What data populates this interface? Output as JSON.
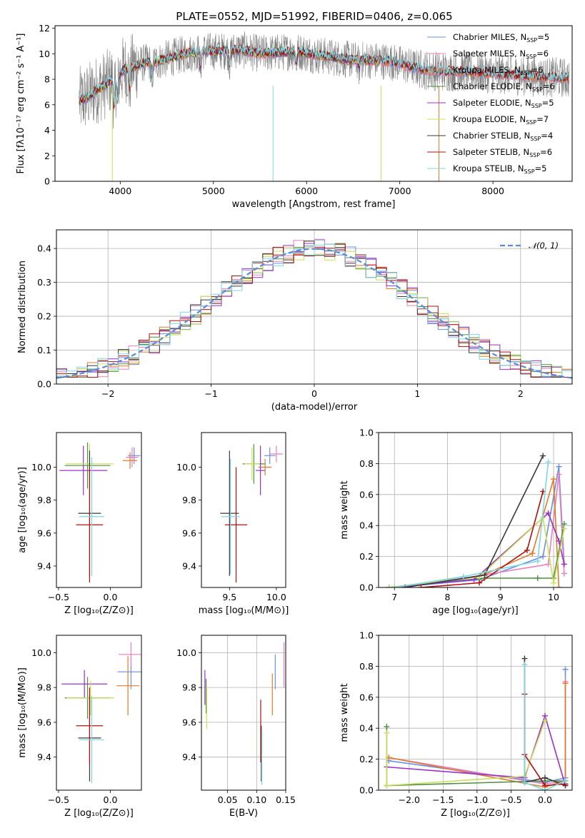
{
  "figure": {
    "title": "PLATE=0552, MJD=51992, FIBERID=0406, z=0.065"
  },
  "colors": {
    "Chabrier MILES": "#6b8fe3",
    "Salpeter MILES": "#e87fbf",
    "Kroupa MILES": "#e07b2a",
    "Chabrier ELODIE": "#4d8f3f",
    "Salpeter ELODIE": "#9b30c8",
    "Kroupa ELODIE": "#c8e05a",
    "Chabrier STELIB": "#3a3a3a",
    "Salpeter STELIB": "#b01010",
    "Kroupa STELIB": "#7fd6e0",
    "data": "#808080",
    "normal": "#5b8ad6"
  },
  "chart_data": [
    {
      "id": "spectrum",
      "type": "line",
      "xlabel": "wavelength [Angstrom, rest frame]",
      "ylabel": "Flux [fλ10⁻¹⁷ erg cm⁻² s⁻¹ A⁻¹]",
      "xlim": [
        3300,
        8850
      ],
      "ylim": [
        0,
        12.2
      ],
      "xticks": [
        4000,
        5000,
        6000,
        7000,
        8000
      ],
      "yticks": [
        0,
        2,
        4,
        6,
        8,
        10,
        12
      ],
      "legend_position": "top-right",
      "legend": [
        {
          "name": "Chabrier MILES",
          "nssp": "5"
        },
        {
          "name": "Salpeter MILES",
          "nssp": "6"
        },
        {
          "name": "Kroupa MILES",
          "nssp": "6"
        },
        {
          "name": "Chabrier ELODIE",
          "nssp": "6"
        },
        {
          "name": "Salpeter ELODIE",
          "nssp": "5"
        },
        {
          "name": "Kroupa ELODIE",
          "nssp": "7"
        },
        {
          "name": "Chabrier STELIB",
          "nssp": "4"
        },
        {
          "name": "Salpeter STELIB",
          "nssp": "6"
        },
        {
          "name": "Kroupa STELIB",
          "nssp": "5"
        }
      ],
      "continuum": {
        "x": [
          3560,
          3650,
          3750,
          3850,
          3950,
          4050,
          4150,
          4250,
          4350,
          4500,
          4700,
          4900,
          5100,
          5300,
          5500,
          5700,
          5900,
          6100,
          6300,
          6500,
          6700,
          6900,
          7100,
          7300,
          7500,
          7700,
          7900,
          8100,
          8300,
          8500,
          8800
        ],
        "y": [
          6.3,
          6.6,
          7.2,
          7.6,
          8.2,
          8.8,
          9.0,
          9.3,
          9.3,
          9.6,
          10.0,
          10.2,
          10.2,
          10.3,
          10.0,
          10.1,
          10.2,
          9.9,
          9.7,
          9.5,
          9.5,
          9.4,
          9.0,
          8.7,
          8.6,
          8.6,
          8.5,
          8.4,
          8.3,
          8.2,
          8.1
        ]
      }
    },
    {
      "id": "residuals",
      "type": "bar",
      "xlabel": "(data-model)/error",
      "ylabel": "Normed distribution",
      "xlim": [
        -2.5,
        2.5
      ],
      "ylim": [
        0,
        0.455
      ],
      "xticks": [
        -2,
        -1,
        0,
        1,
        2
      ],
      "yticks": [
        0.0,
        0.1,
        0.2,
        0.3,
        0.4
      ],
      "grid": true,
      "bin_width": 0.1,
      "legend": "𝒩(0, 1)",
      "gaussian": {
        "mean": 0,
        "sd": 1,
        "scale": 0.399
      }
    },
    {
      "id": "age-vs-Z",
      "type": "scatter",
      "xlabel": "Z [log₁₀(Z/Z⊙)]",
      "ylabel": "age  [log₁₀(age/yr)]",
      "xlim": [
        -0.52,
        0.3
      ],
      "ylim": [
        9.27,
        10.21
      ],
      "xticks": [
        -0.5,
        0.0
      ],
      "yticks": [
        9.4,
        9.6,
        9.8,
        10.0
      ],
      "points": [
        {
          "s": "Chabrier MILES",
          "x": 0.23,
          "y": 10.07,
          "xe": 0.06,
          "ye": 0.05
        },
        {
          "s": "Salpeter MILES",
          "x": 0.21,
          "y": 10.06,
          "xe": 0.06,
          "ye": 0.06
        },
        {
          "s": "Kroupa MILES",
          "x": 0.19,
          "y": 10.04,
          "xe": 0.07,
          "ye": 0.05
        },
        {
          "s": "Chabrier ELODIE",
          "x": -0.22,
          "y": 10.01,
          "xe": 0.22,
          "ye": 0.14
        },
        {
          "s": "Salpeter ELODIE",
          "x": -0.26,
          "y": 9.98,
          "xe": 0.23,
          "ye": 0.15
        },
        {
          "s": "Kroupa ELODIE",
          "x": -0.2,
          "y": 10.02,
          "xe": 0.23,
          "ye": 0.12
        },
        {
          "s": "Chabrier STELIB",
          "x": -0.2,
          "y": 9.72,
          "xe": 0.11,
          "ye": 0.38
        },
        {
          "s": "Salpeter STELIB",
          "x": -0.2,
          "y": 9.65,
          "xe": 0.13,
          "ye": 0.35
        },
        {
          "s": "Kroupa STELIB",
          "x": -0.18,
          "y": 9.7,
          "xe": 0.12,
          "ye": 0.36
        }
      ]
    },
    {
      "id": "age-vs-mass",
      "type": "scatter",
      "xlabel": "mass [log₁₀(M/M⊙)]",
      "ylabel": "",
      "xlim": [
        9.2,
        10.1
      ],
      "ylim": [
        9.27,
        10.21
      ],
      "xticks": [
        9.5,
        10.0
      ],
      "yticks": [
        9.4,
        9.6,
        9.8,
        10.0
      ],
      "points": [
        {
          "s": "Chabrier MILES",
          "x": 9.93,
          "y": 10.07,
          "xe": 0.06,
          "ye": 0.05
        },
        {
          "s": "Salpeter MILES",
          "x": 10.0,
          "y": 10.08,
          "xe": 0.07,
          "ye": 0.05
        },
        {
          "s": "Kroupa MILES",
          "x": 9.88,
          "y": 10.0,
          "xe": 0.07,
          "ye": 0.05
        },
        {
          "s": "Chabrier ELODIE",
          "x": 9.76,
          "y": 10.02,
          "xe": 0.12,
          "ye": 0.12
        },
        {
          "s": "Salpeter ELODIE",
          "x": 9.83,
          "y": 9.98,
          "xe": 0.05,
          "ye": 0.15
        },
        {
          "s": "Kroupa ELODIE",
          "x": 9.74,
          "y": 10.02,
          "xe": 0.08,
          "ye": 0.1
        },
        {
          "s": "Chabrier STELIB",
          "x": 9.5,
          "y": 9.72,
          "xe": 0.1,
          "ye": 0.38
        },
        {
          "s": "Salpeter STELIB",
          "x": 9.57,
          "y": 9.65,
          "xe": 0.12,
          "ye": 0.35
        },
        {
          "s": "Kroupa STELIB",
          "x": 9.51,
          "y": 9.7,
          "xe": 0.1,
          "ye": 0.35
        }
      ]
    },
    {
      "id": "weight-vs-age",
      "type": "line",
      "xlabel": "age  [log₁₀(age/yr)]",
      "ylabel": "mass weight",
      "xlim": [
        6.7,
        10.35
      ],
      "ylim": [
        0,
        1.0
      ],
      "xticks": [
        7,
        8,
        9,
        10
      ],
      "yticks": [
        0.0,
        0.2,
        0.4,
        0.6,
        0.8,
        1.0
      ],
      "grid": true,
      "series": [
        {
          "s": "Chabrier MILES",
          "x": [
            7.0,
            8.6,
            9.8,
            10.1,
            10.2
          ],
          "y": [
            0.0,
            0.05,
            0.2,
            0.78,
            0.15
          ]
        },
        {
          "s": "Salpeter MILES",
          "x": [
            6.9,
            8.3,
            9.9,
            10.1,
            10.2
          ],
          "y": [
            0.0,
            0.06,
            0.15,
            0.73,
            0.09
          ]
        },
        {
          "s": "Kroupa MILES",
          "x": [
            7.0,
            8.6,
            9.6,
            10.0,
            10.1
          ],
          "y": [
            0.0,
            0.07,
            0.22,
            0.7,
            0.0
          ]
        },
        {
          "s": "Chabrier ELODIE",
          "x": [
            6.9,
            8.7,
            9.7,
            10.0,
            10.2
          ],
          "y": [
            0.0,
            0.06,
            0.06,
            0.06,
            0.41
          ]
        },
        {
          "s": "Salpeter ELODIE",
          "x": [
            6.9,
            8.5,
            9.9,
            10.1,
            10.2
          ],
          "y": [
            0.0,
            0.05,
            0.48,
            0.3,
            0.15
          ]
        },
        {
          "s": "Kroupa ELODIE",
          "x": [
            6.9,
            8.6,
            9.8,
            10.0,
            10.2
          ],
          "y": [
            0.0,
            0.07,
            0.45,
            0.03,
            0.38
          ]
        },
        {
          "s": "Chabrier STELIB",
          "x": [
            7.2,
            8.7,
            9.8
          ],
          "y": [
            0.0,
            0.08,
            0.85
          ]
        },
        {
          "s": "Salpeter STELIB",
          "x": [
            7.5,
            8.6,
            9.5,
            9.8
          ],
          "y": [
            0.0,
            0.03,
            0.24,
            0.62
          ]
        },
        {
          "s": "Kroupa STELIB",
          "x": [
            7.0,
            8.3,
            9.7,
            9.9
          ],
          "y": [
            0.0,
            0.07,
            0.17,
            0.81
          ]
        }
      ]
    },
    {
      "id": "mass-vs-Z",
      "type": "scatter",
      "xlabel": "Z [log₁₀(Z/Z⊙)]",
      "ylabel": "mass [log₁₀(M/M⊙)]",
      "xlim": [
        -0.52,
        0.3
      ],
      "ylim": [
        9.21,
        10.1
      ],
      "xticks": [
        -0.5,
        0.0
      ],
      "yticks": [
        9.4,
        9.6,
        9.8,
        10.0
      ],
      "points": [
        {
          "s": "Chabrier MILES",
          "x": 0.2,
          "y": 9.89,
          "xe": 0.13,
          "ye": 0.1
        },
        {
          "s": "Salpeter MILES",
          "x": 0.2,
          "y": 9.99,
          "xe": 0.12,
          "ye": 0.07
        },
        {
          "s": "Kroupa MILES",
          "x": 0.17,
          "y": 9.81,
          "xe": 0.11,
          "ye": 0.17
        },
        {
          "s": "Chabrier ELODIE",
          "x": -0.22,
          "y": 9.74,
          "xe": 0.22,
          "ye": 0.12
        },
        {
          "s": "Salpeter ELODIE",
          "x": -0.25,
          "y": 9.82,
          "xe": 0.22,
          "ye": 0.08
        },
        {
          "s": "Kroupa ELODIE",
          "x": -0.19,
          "y": 9.74,
          "xe": 0.23,
          "ye": 0.1
        },
        {
          "s": "Chabrier STELIB",
          "x": -0.2,
          "y": 9.51,
          "xe": 0.11,
          "ye": 0.25
        },
        {
          "s": "Salpeter STELIB",
          "x": -0.2,
          "y": 9.58,
          "xe": 0.13,
          "ye": 0.22
        },
        {
          "s": "Kroupa STELIB",
          "x": -0.18,
          "y": 9.5,
          "xe": 0.12,
          "ye": 0.25
        }
      ]
    },
    {
      "id": "mass-vs-EBV",
      "type": "scatter",
      "xlabel": "E(B-V)",
      "ylabel": "",
      "xlim": [
        0.005,
        0.15
      ],
      "ylim": [
        9.21,
        10.1
      ],
      "xticks": [
        0.05,
        0.1,
        0.15
      ],
      "xticklabels": [
        "0.05",
        "0.10",
        "0.15"
      ],
      "yticks": [
        9.4,
        9.6,
        9.8,
        10.0
      ],
      "grid": true,
      "points": [
        {
          "s": "Chabrier MILES",
          "x": 0.132,
          "y": 9.89,
          "ye": 0.1
        },
        {
          "s": "Salpeter MILES",
          "x": 0.147,
          "y": 9.93,
          "ye": 0.13
        },
        {
          "s": "Kroupa MILES",
          "x": 0.127,
          "y": 9.76,
          "ye": 0.12
        },
        {
          "s": "Chabrier ELODIE",
          "x": 0.013,
          "y": 9.75,
          "ye": 0.1
        },
        {
          "s": "Salpeter ELODIE",
          "x": 0.011,
          "y": 9.8,
          "ye": 0.1
        },
        {
          "s": "Kroupa ELODIE",
          "x": 0.014,
          "y": 9.68,
          "ye": 0.12
        },
        {
          "s": "Chabrier STELIB",
          "x": 0.108,
          "y": 9.42,
          "ye": 0.16
        },
        {
          "s": "Salpeter STELIB",
          "x": 0.107,
          "y": 9.55,
          "ye": 0.18
        },
        {
          "s": "Kroupa STELIB",
          "x": 0.109,
          "y": 9.4,
          "ye": 0.16
        }
      ]
    },
    {
      "id": "weight-vs-Z",
      "type": "line",
      "xlabel": "Z [log₁₀(Z/Z⊙)]",
      "ylabel": "mass weight",
      "xlim": [
        -2.45,
        0.4
      ],
      "ylim": [
        0,
        1.0
      ],
      "xticks": [
        -2.0,
        -1.5,
        -1.0,
        -0.5,
        0.0
      ],
      "yticks": [
        0.0,
        0.2,
        0.4,
        0.6,
        0.8,
        1.0
      ],
      "grid": true,
      "series": [
        {
          "s": "Chabrier MILES",
          "x": [
            -2.3,
            0.0,
            0.3,
            0.3
          ],
          "y": [
            0.19,
            0.05,
            0.08,
            0.78
          ]
        },
        {
          "s": "Salpeter MILES",
          "x": [
            -2.3,
            0.0,
            0.3,
            0.3
          ],
          "y": [
            0.21,
            0.04,
            0.06,
            0.7
          ]
        },
        {
          "s": "Kroupa MILES",
          "x": [
            -2.3,
            0.0,
            0.3,
            0.3
          ],
          "y": [
            0.21,
            0.02,
            0.06,
            0.69
          ]
        },
        {
          "s": "Chabrier ELODIE",
          "x": [
            -2.33,
            -2.33,
            0.0,
            0.3
          ],
          "y": [
            0.41,
            0.03,
            0.06,
            0.06
          ]
        },
        {
          "s": "Salpeter ELODIE",
          "x": [
            -2.33,
            -0.3,
            0.0,
            0.3
          ],
          "y": [
            0.15,
            0.08,
            0.48,
            0.03
          ]
        },
        {
          "s": "Kroupa ELODIE",
          "x": [
            -2.33,
            -2.33,
            -0.3,
            0.0
          ],
          "y": [
            0.37,
            0.03,
            0.09,
            0.45
          ]
        },
        {
          "s": "Chabrier STELIB",
          "x": [
            -0.3,
            -0.3,
            0.0,
            0.3
          ],
          "y": [
            0.85,
            0.05,
            0.08,
            0.03
          ]
        },
        {
          "s": "Salpeter STELIB",
          "x": [
            -0.3,
            -0.3,
            0.0,
            0.3
          ],
          "y": [
            0.62,
            0.23,
            0.03,
            0.04
          ]
        },
        {
          "s": "Kroupa STELIB",
          "x": [
            -0.3,
            -0.3,
            0.0,
            0.3
          ],
          "y": [
            0.81,
            0.05,
            0.0,
            0.06
          ]
        }
      ]
    }
  ]
}
